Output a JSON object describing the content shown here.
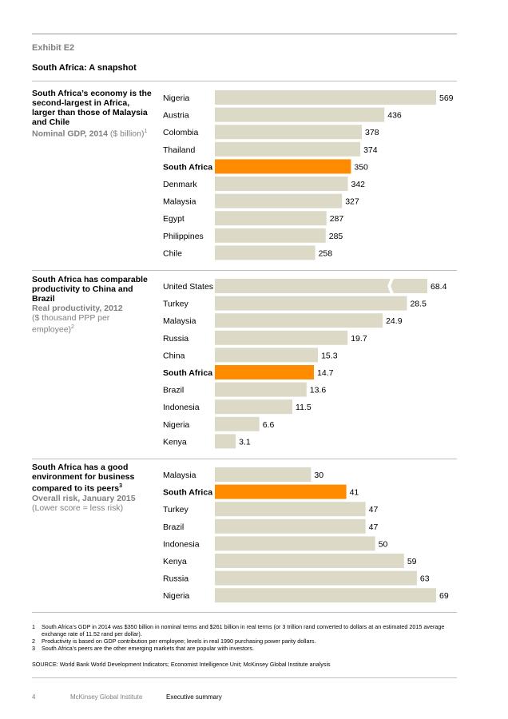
{
  "exhibit": {
    "label": "Exhibit E2",
    "title": "South Africa: A snapshot"
  },
  "panels": [
    {
      "heading": "South Africa’s economy is the second-largest in Africa, larger than those of Malaysia and Chile",
      "metric": "Nominal GDP, 2014",
      "unit": "($ billion)",
      "sup": "1",
      "subnote": ""
    },
    {
      "heading": "South Africa has comparable productivity to China and Brazil",
      "metric": "Real productivity, 2012",
      "unit": "($ thousand PPP per employee)",
      "sup": "2",
      "subnote": ""
    },
    {
      "heading": "South Africa has a good environment for business compared to its peers",
      "metric": "Overall risk, January 2015",
      "unit": "",
      "sup": "3",
      "subnote": "(Lower score = less risk)"
    }
  ],
  "chart_data": [
    {
      "type": "bar",
      "orientation": "horizontal",
      "categories": [
        "Nigeria",
        "Austria",
        "Colombia",
        "Thailand",
        "South Africa",
        "Denmark",
        "Malaysia",
        "Egypt",
        "Philippines",
        "Chile"
      ],
      "values": [
        569,
        436,
        378,
        374,
        350,
        342,
        327,
        287,
        285,
        258
      ],
      "labels": [
        "569",
        "436",
        "378",
        "374",
        "350",
        "342",
        "327",
        "287",
        "285",
        "258"
      ],
      "highlight": "South Africa",
      "xlim": [
        0,
        569
      ]
    },
    {
      "type": "bar",
      "orientation": "horizontal",
      "categories": [
        "United States",
        "Turkey",
        "Malaysia",
        "Russia",
        "China",
        "South Africa",
        "Brazil",
        "Indonesia",
        "Nigeria",
        "Kenya"
      ],
      "values": [
        68.4,
        28.5,
        24.9,
        19.7,
        15.3,
        14.7,
        13.6,
        11.5,
        6.6,
        3.1
      ],
      "labels": [
        "68.4",
        "28.5",
        "24.9",
        "19.7",
        "15.3",
        "14.7",
        "13.6",
        "11.5",
        "6.6",
        "3.1"
      ],
      "highlight": "South Africa",
      "axis_break": "United States",
      "xlim": [
        0,
        32
      ]
    },
    {
      "type": "bar",
      "orientation": "horizontal",
      "categories": [
        "Malaysia",
        "South Africa",
        "Turkey",
        "Brazil",
        "Indonesia",
        "Kenya",
        "Russia",
        "Nigeria"
      ],
      "values": [
        30,
        41,
        47,
        47,
        50,
        59,
        63,
        69
      ],
      "labels": [
        "30",
        "41",
        "47",
        "47",
        "50",
        "59",
        "63",
        "69"
      ],
      "highlight": "South Africa",
      "xlim": [
        0,
        69
      ]
    }
  ],
  "colors": {
    "bar": "#dcdac6",
    "highlight": "#ff8c00",
    "rule": "#bdbdbd",
    "muted": "#808080"
  },
  "footnotes": [
    {
      "num": "1",
      "text": "South Africa’s GDP in 2014 was $350 billion in nominal terms and $261 billion in real terms (or 3 trillion rand converted to dollars at an estimated 2015 average exchange rate of 11.52 rand per dollar)."
    },
    {
      "num": "2",
      "text": "Productivity is based on GDP contribution per employee; levels in real 1990 purchasing power parity dollars."
    },
    {
      "num": "3",
      "text": "South Africa’s peers are the other emerging markets that are popular with investors."
    }
  ],
  "source": "SOURCE:  World Bank World Development Indicators; Economist Intelligence Unit; McKinsey Global Institute analysis",
  "footer": {
    "page": "4",
    "publisher": "McKinsey Global Institute",
    "section": "Executive summary"
  }
}
